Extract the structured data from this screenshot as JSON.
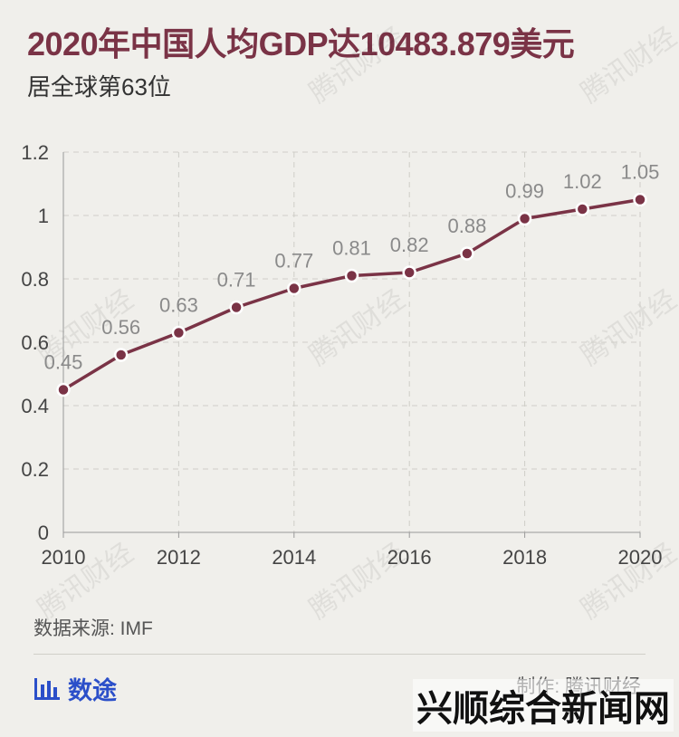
{
  "header": {
    "title": "2020年中国人均GDP达10483.879美元",
    "subtitle": "居全球第63位"
  },
  "footer": {
    "source": "数据来源: IMF",
    "brand": "数途",
    "credit": "制作: 腾讯财经",
    "corner_logo": "兴顺综合新闻网"
  },
  "watermark": "腾讯财经",
  "colors": {
    "line": "#7a3346",
    "background": "#f0efeb",
    "brand": "#2b4fc9"
  },
  "chart_data": {
    "type": "line",
    "x": [
      2010,
      2011,
      2012,
      2013,
      2014,
      2015,
      2016,
      2017,
      2018,
      2019,
      2020
    ],
    "y": [
      0.45,
      0.56,
      0.63,
      0.71,
      0.77,
      0.81,
      0.82,
      0.88,
      0.99,
      1.02,
      1.05
    ],
    "data_labels": [
      "0.45",
      "0.56",
      "0.63",
      "0.71",
      "0.77",
      "0.81",
      "0.82",
      "0.88",
      "0.99",
      "1.02",
      "1.05"
    ],
    "xticks": [
      "2010",
      "2012",
      "2014",
      "2016",
      "2018",
      "2020"
    ],
    "yticks": [
      "0",
      "0.2",
      "0.4",
      "0.6",
      "0.8",
      "1",
      "1.2"
    ],
    "ylim": [
      0,
      1.2
    ],
    "xlim": [
      2010,
      2020
    ],
    "grid": "dashed",
    "legend": "none"
  }
}
